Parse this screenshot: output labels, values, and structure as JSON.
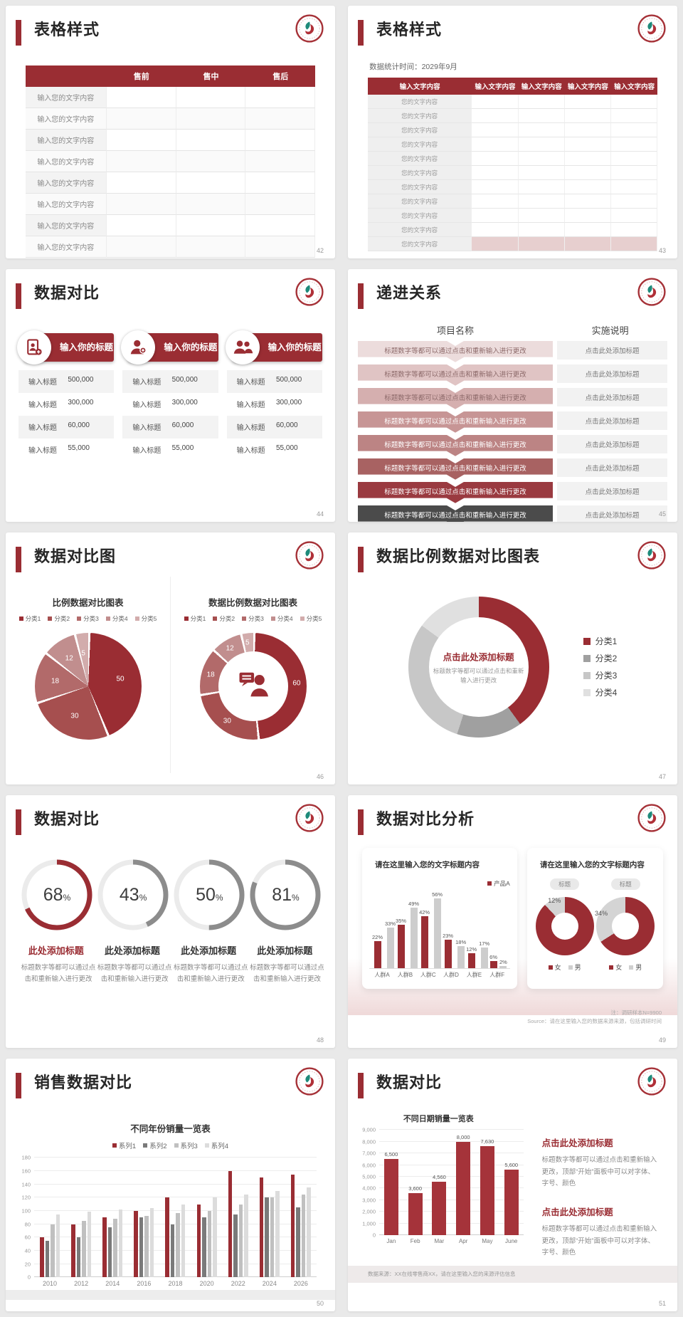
{
  "brand": {
    "red": "#9a2d33",
    "red_bright": "#a5333a",
    "gray_arc": "#8c8c8c"
  },
  "slides": [
    {
      "title": "表格样式",
      "page": "42",
      "table": {
        "header": [
          "",
          "售前",
          "售中",
          "售后"
        ],
        "row_label": "输入您的文字内容",
        "row_count": 8
      }
    },
    {
      "title": "表格样式",
      "page": "43",
      "subtitle": "数据统计时间：2029年9月",
      "table": {
        "header": [
          "输入文字内容",
          "输入文字内容",
          "输入文字内容",
          "输入文字内容",
          "输入文字内容"
        ],
        "row_label": "您的文字内容",
        "row_count": 11
      }
    },
    {
      "title": "数据对比",
      "page": "44",
      "cards": [
        {
          "icon": "id-card-person-icon",
          "header": "输入你的标题",
          "rows": [
            {
              "label": "输入标题",
              "value": "500,000"
            },
            {
              "label": "输入标题",
              "value": "300,000"
            },
            {
              "label": "输入标题",
              "value": "60,000"
            },
            {
              "label": "输入标题",
              "value": "55,000"
            }
          ]
        },
        {
          "icon": "person-plus-icon",
          "header": "输入你的标题",
          "rows": [
            {
              "label": "输入标题",
              "value": "500,000"
            },
            {
              "label": "输入标题",
              "value": "300,000"
            },
            {
              "label": "输入标题",
              "value": "60,000"
            },
            {
              "label": "输入标题",
              "value": "55,000"
            }
          ]
        },
        {
          "icon": "people-icon",
          "header": "输入你的标题",
          "rows": [
            {
              "label": "输入标题",
              "value": "500,000"
            },
            {
              "label": "输入标题",
              "value": "300,000"
            },
            {
              "label": "输入标题",
              "value": "60,000"
            },
            {
              "label": "输入标题",
              "value": "55,000"
            }
          ]
        }
      ]
    },
    {
      "title": "递进关系",
      "page": "45",
      "columns": {
        "left": "项目名称",
        "right": "实施说明"
      },
      "step_text": "标题数字等都可以通过点击和重新输入进行更改",
      "note_text": "点击此处添加标题",
      "step_colors": [
        "#ecdcdc",
        "#e0c4c4",
        "#d5afaf",
        "#c79595",
        "#bc8484",
        "#a86262",
        "#9a3a40",
        "#4b4b4b"
      ]
    },
    {
      "title": "数据对比图",
      "page": "46",
      "charts": [
        {
          "type": "pie",
          "title": "比例数据对比图表",
          "legend": [
            "分类1",
            "分类2",
            "分类3",
            "分类4",
            "分类5"
          ],
          "values": [
            50,
            30,
            18,
            12,
            5
          ],
          "colors": [
            "#9a2d33",
            "#a64f4f",
            "#b26a6a",
            "#c18e8e",
            "#d2acac"
          ]
        },
        {
          "type": "donut",
          "title": "数据比例数据对比图表",
          "legend": [
            "分类1",
            "分类2",
            "分类3",
            "分类4",
            "分类5"
          ],
          "values": [
            60,
            30,
            18,
            12,
            5
          ],
          "colors": [
            "#9a2d33",
            "#a64f4f",
            "#b26a6a",
            "#c18e8e",
            "#d2acac"
          ]
        }
      ]
    },
    {
      "title": "数据比例数据对比图表",
      "page": "47",
      "chart": {
        "type": "donut",
        "labels": [
          "分类1",
          "分类2",
          "分类3",
          "分类4"
        ],
        "values": [
          40,
          15,
          30,
          15
        ],
        "colors": [
          "#9a2d33",
          "#a0a0a0",
          "#c7c7c7",
          "#e0e0e0"
        ]
      },
      "center_title": "点击此处添加标题",
      "center_desc": "标题数字等都可以通过点击和重新输入进行更改"
    },
    {
      "title": "数据对比",
      "page": "48",
      "item_title": "此处添加标题",
      "item_desc": "标题数字等都可以通过点击和重新输入进行更改",
      "gauges": [
        {
          "percent": 68,
          "accent": true
        },
        {
          "percent": 43,
          "accent": false
        },
        {
          "percent": 50,
          "accent": false
        },
        {
          "percent": 81,
          "accent": false
        }
      ]
    },
    {
      "title": "数据对比分析",
      "page": "49",
      "panel_title": "请在这里输入您的文字标题内容",
      "bar_chart": {
        "legend": "产品A",
        "categories": [
          "人群A",
          "人群B",
          "人群C",
          "人群D",
          "人群E",
          "人群F"
        ],
        "series": [
          {
            "name": "产品A",
            "color": "#9a2d33",
            "values": [
              22,
              35,
              42,
              23,
              12,
              6
            ]
          },
          {
            "name": "对比",
            "color": "#cdcdcd",
            "values": [
              33,
              49,
              56,
              18,
              17,
              2
            ]
          }
        ]
      },
      "donuts": {
        "pill": "标题",
        "items": [
          {
            "gray_percent": 12
          },
          {
            "gray_percent": 34
          }
        ],
        "legend": [
          "女",
          "男"
        ]
      },
      "notes": [
        "注：调研样本N=9900",
        "Source：请在这里输入您的数据来源来源，包括调研时间"
      ]
    },
    {
      "title": "销售数据对比",
      "page": "50",
      "chart": {
        "type": "bar",
        "title": "不同年份销量一览表",
        "legend": [
          "系列1",
          "系列2",
          "系列3",
          "系列4"
        ],
        "colors": [
          "#9a2d33",
          "#7a7a7a",
          "#c0c0c0",
          "#dcdcdc"
        ],
        "categories": [
          "2010",
          "2012",
          "2014",
          "2016",
          "2018",
          "2020",
          "2022",
          "2024",
          "2026"
        ],
        "groups": [
          [
            60,
            55,
            80,
            95
          ],
          [
            80,
            60,
            85,
            99
          ],
          [
            90,
            75,
            88,
            102
          ],
          [
            100,
            90,
            92,
            104
          ],
          [
            120,
            80,
            97,
            110
          ],
          [
            110,
            90,
            100,
            120
          ],
          [
            160,
            95,
            110,
            125
          ],
          [
            150,
            120,
            120,
            130
          ],
          [
            155,
            105,
            125,
            135
          ]
        ],
        "ymax": 180,
        "ystep": 20
      }
    },
    {
      "title": "数据对比",
      "page": "51",
      "chart": {
        "type": "bar",
        "title": "不同日期销量一览表",
        "categories": [
          "Jan",
          "Feb",
          "Mar",
          "Apr",
          "May",
          "June"
        ],
        "values": [
          6500,
          3600,
          4560,
          8000,
          7630,
          5600
        ],
        "value_labels": [
          "6,500",
          "3,600",
          "4,560",
          "8,000",
          "7,630",
          "5,600"
        ],
        "ymax": 9000,
        "ystep": 1000,
        "color": "#a5333a"
      },
      "blocks": [
        {
          "title": "点击此处添加标题",
          "desc": "标题数字等都可以通过点击和重新输入更改，顶部“开始”面板中可以对字体、字号、颜色"
        },
        {
          "title": "点击此处添加标题",
          "desc": "标题数字等都可以通过点击和重新输入更改，顶部“开始”面板中可以对字体、字号、颜色"
        }
      ],
      "source": "数据来源：XX在线零售商XX，请在这里输入您的来源评估信息"
    }
  ]
}
